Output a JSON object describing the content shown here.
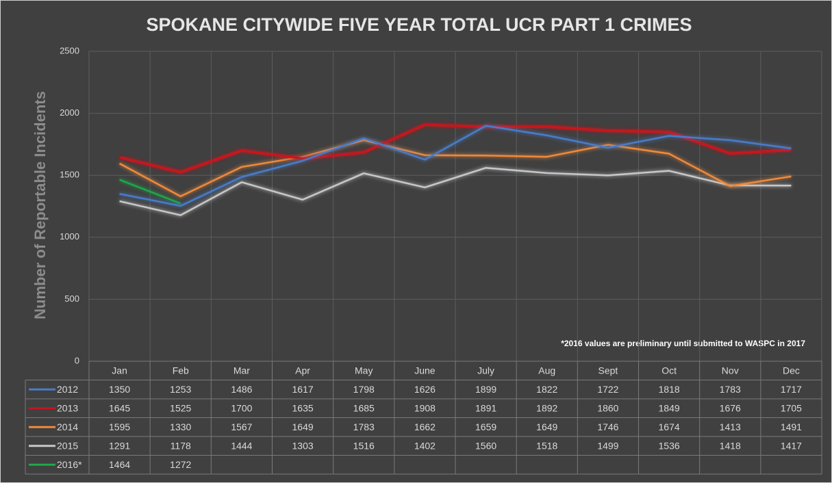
{
  "chart_data": {
    "type": "line",
    "title": "SPOKANE CITYWIDE FIVE YEAR TOTAL UCR PART 1 CRIMES",
    "y_label": "Number of  Reportable Incidents",
    "annotation": "*2016 values are preliminary until submitted to WASPC in 2017",
    "categories": [
      "Jan",
      "Feb",
      "Mar",
      "Apr",
      "May",
      "June",
      "July",
      "Aug",
      "Sept",
      "Oct",
      "Nov",
      "Dec"
    ],
    "series": [
      {
        "name": "2012",
        "color": "#4a7cc9",
        "values": [
          1350,
          1253,
          1486,
          1617,
          1798,
          1626,
          1899,
          1822,
          1722,
          1818,
          1783,
          1717
        ]
      },
      {
        "name": "2013",
        "color": "#c8141e",
        "values": [
          1645,
          1525,
          1700,
          1635,
          1685,
          1908,
          1891,
          1892,
          1860,
          1849,
          1676,
          1705
        ]
      },
      {
        "name": "2014",
        "color": "#ef8a3c",
        "values": [
          1595,
          1330,
          1567,
          1649,
          1783,
          1662,
          1659,
          1649,
          1746,
          1674,
          1413,
          1491
        ]
      },
      {
        "name": "2015",
        "color": "#c8c8c8",
        "values": [
          1291,
          1178,
          1444,
          1303,
          1516,
          1402,
          1560,
          1518,
          1499,
          1536,
          1418,
          1417
        ]
      },
      {
        "name": "2016*",
        "color": "#1fa84a",
        "values": [
          1464,
          1272,
          null,
          null,
          null,
          null,
          null,
          null,
          null,
          null,
          null,
          null
        ]
      }
    ],
    "ylim": [
      0,
      2500
    ],
    "yticks": [
      0,
      500,
      1000,
      1500,
      2000,
      2500
    ],
    "grid": true
  }
}
